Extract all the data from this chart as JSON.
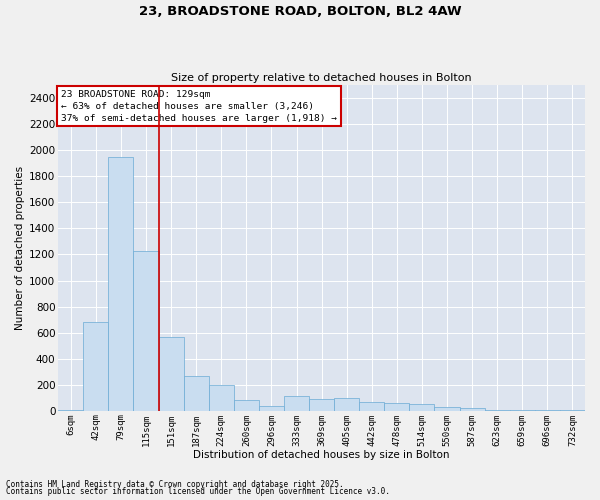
{
  "title1": "23, BROADSTONE ROAD, BOLTON, BL2 4AW",
  "title2": "Size of property relative to detached houses in Bolton",
  "xlabel": "Distribution of detached houses by size in Bolton",
  "ylabel": "Number of detached properties",
  "bar_color": "#c9ddf0",
  "bar_edge_color": "#6aaad4",
  "background_color": "#dde4ef",
  "fig_background_color": "#f0f0f0",
  "grid_color": "#ffffff",
  "red_line_color": "#cc0000",
  "annotation_box_color": "#cc0000",
  "categories": [
    "6sqm",
    "42sqm",
    "79sqm",
    "115sqm",
    "151sqm",
    "187sqm",
    "224sqm",
    "260sqm",
    "296sqm",
    "333sqm",
    "369sqm",
    "405sqm",
    "442sqm",
    "478sqm",
    "514sqm",
    "550sqm",
    "587sqm",
    "623sqm",
    "659sqm",
    "696sqm",
    "732sqm"
  ],
  "values": [
    5,
    680,
    1950,
    1230,
    570,
    270,
    200,
    80,
    40,
    110,
    90,
    100,
    70,
    60,
    50,
    30,
    20,
    10,
    10,
    5,
    5
  ],
  "red_line_x": 3.5,
  "annotation_text": "23 BROADSTONE ROAD: 129sqm\n← 63% of detached houses are smaller (3,246)\n37% of semi-detached houses are larger (1,918) →",
  "ylim": [
    0,
    2500
  ],
  "yticks": [
    0,
    200,
    400,
    600,
    800,
    1000,
    1200,
    1400,
    1600,
    1800,
    2000,
    2200,
    2400
  ],
  "footnote1": "Contains HM Land Registry data © Crown copyright and database right 2025.",
  "footnote2": "Contains public sector information licensed under the Open Government Licence v3.0."
}
